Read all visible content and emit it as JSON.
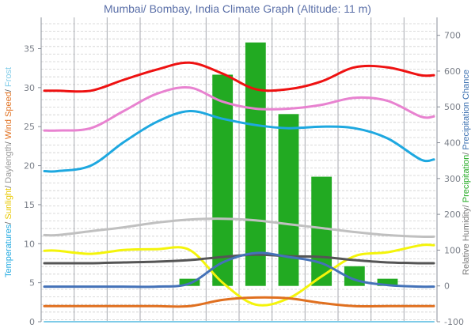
{
  "chart_data": {
    "type": "bar",
    "title": "Mumbai/ Bombay, India Climate Graph (Altitude: 11 m)",
    "months": 12,
    "left_axis": {
      "ylim": [
        0,
        39
      ],
      "ticks": [
        0,
        5,
        10,
        15,
        20,
        25,
        30,
        35
      ],
      "label_parts": [
        {
          "text": "Temperatures",
          "color": "#1ea8e0"
        },
        {
          "text": "/ ",
          "color": "#666666"
        },
        {
          "text": "Sunlight",
          "color": "#e8c800"
        },
        {
          "text": "/ ",
          "color": "#666666"
        },
        {
          "text": "Daylength",
          "color": "#999999"
        },
        {
          "text": "/ ",
          "color": "#666666"
        },
        {
          "text": "Wind Speed",
          "color": "#e07020"
        },
        {
          "text": "/ ",
          "color": "#666666"
        },
        {
          "text": "Frost",
          "color": "#7ecbe8"
        }
      ]
    },
    "right_axis": {
      "ylim": [
        -100,
        750
      ],
      "ticks": [
        -100,
        0,
        100,
        200,
        300,
        400,
        500,
        600,
        700
      ],
      "label_parts": [
        {
          "text": "Relative Humidity",
          "color": "#777777"
        },
        {
          "text": "/ ",
          "color": "#666666"
        },
        {
          "text": "Precipitation",
          "color": "#22aa22"
        },
        {
          "text": "/ ",
          "color": "#666666"
        },
        {
          "text": "Precipitation Chance",
          "color": "#3a6fb0"
        }
      ]
    },
    "bar_series": {
      "name": "Precipitation",
      "axis": "right",
      "color": "#22aa22",
      "values": [
        0,
        0,
        0,
        0,
        20,
        590,
        680,
        480,
        305,
        55,
        20,
        0
      ]
    },
    "line_series": [
      {
        "axis": "left",
        "color": "#ee1111",
        "values": [
          29.6,
          29.6,
          31.0,
          32.3,
          33.2,
          31.8,
          29.8,
          29.8,
          30.8,
          32.6,
          32.6,
          31.6
        ]
      },
      {
        "axis": "left",
        "color": "#e882d0",
        "values": [
          24.5,
          24.8,
          27.0,
          29.2,
          30.0,
          28.2,
          27.3,
          27.3,
          27.8,
          28.7,
          28.3,
          26.3
        ]
      },
      {
        "axis": "left",
        "color": "#1ea8e0",
        "values": [
          19.3,
          20.0,
          23.0,
          25.6,
          27.0,
          26.0,
          25.2,
          24.8,
          25.0,
          24.8,
          23.5,
          20.8
        ]
      },
      {
        "axis": "left",
        "color": "#c0c0c0",
        "values": [
          11.1,
          11.6,
          12.1,
          12.7,
          13.1,
          13.2,
          13.0,
          12.5,
          12.0,
          11.5,
          11.1,
          10.9
        ]
      },
      {
        "axis": "left",
        "color": "#f4f40a",
        "values": [
          9.1,
          8.7,
          9.2,
          9.3,
          9.2,
          5.0,
          2.2,
          3.0,
          5.8,
          8.4,
          8.9,
          9.8
        ]
      },
      {
        "axis": "left",
        "color": "#555555",
        "values": [
          7.5,
          7.5,
          7.6,
          7.7,
          7.9,
          8.3,
          8.6,
          8.4,
          8.3,
          7.9,
          7.6,
          7.5
        ]
      },
      {
        "axis": "left",
        "color": "#4472b8",
        "values": [
          4.5,
          4.5,
          4.5,
          4.5,
          4.9,
          7.6,
          8.8,
          8.3,
          7.5,
          5.4,
          4.7,
          4.5
        ]
      },
      {
        "axis": "left",
        "color": "#e07020",
        "values": [
          2.0,
          2.0,
          2.0,
          2.0,
          2.0,
          2.8,
          3.1,
          3.0,
          2.4,
          2.0,
          2.0,
          2.0
        ]
      },
      {
        "axis": "left",
        "color": "#7ecbe8",
        "values": [
          0,
          0,
          0,
          0,
          0,
          0,
          0,
          0,
          0,
          0,
          0,
          0
        ]
      }
    ],
    "grid": true
  }
}
